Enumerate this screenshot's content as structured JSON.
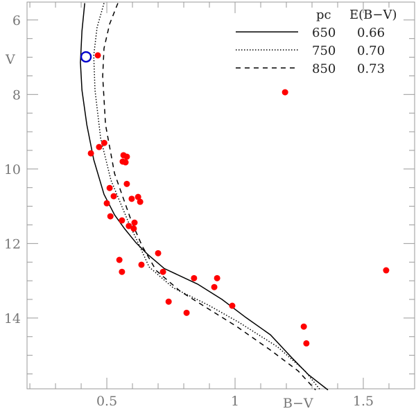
{
  "chart_data": {
    "type": "scatter",
    "title": "",
    "xlabel": "B−V",
    "ylabel": "V",
    "xlim": [
      0.189,
      1.7
    ],
    "ylim": [
      15.9,
      5.52
    ],
    "y_inverted": true,
    "x_ticks": [
      {
        "value": 0.5,
        "label": "0.5"
      },
      {
        "value": 1,
        "label": "1"
      },
      {
        "value": 1.5,
        "label": "1.5"
      }
    ],
    "y_ticks": [
      {
        "value": 6,
        "label": "6"
      },
      {
        "value": 8,
        "label": "8"
      },
      {
        "value": 10,
        "label": "10"
      },
      {
        "value": 12,
        "label": "12"
      },
      {
        "value": 14,
        "label": "14"
      }
    ],
    "x_minor_step": 0.1,
    "y_minor_step": 0.5,
    "grid": false,
    "legend": {
      "placement": "top-right",
      "headers": [
        "pc",
        "E(B−V)"
      ],
      "entries": [
        {
          "style": "solid",
          "pc": "650",
          "ebv": "0.66"
        },
        {
          "style": "dotted",
          "pc": "750",
          "ebv": "0.70"
        },
        {
          "style": "dashed",
          "pc": "850",
          "ebv": "0.73"
        }
      ]
    },
    "series": [
      {
        "name": "isochrone 650 pc",
        "style": "solid",
        "color": "#000000",
        "points": [
          [
            0.414,
            5.55
          ],
          [
            0.403,
            6.3
          ],
          [
            0.397,
            7.14
          ],
          [
            0.403,
            7.88
          ],
          [
            0.422,
            8.81
          ],
          [
            0.449,
            9.75
          ],
          [
            0.489,
            10.68
          ],
          [
            0.53,
            11.23
          ],
          [
            0.57,
            11.61
          ],
          [
            0.614,
            11.98
          ],
          [
            0.659,
            12.29
          ],
          [
            0.724,
            12.67
          ],
          [
            0.854,
            13.09
          ],
          [
            0.949,
            13.5
          ],
          [
            1.043,
            13.99
          ],
          [
            1.138,
            14.45
          ],
          [
            1.219,
            15.05
          ],
          [
            1.286,
            15.52
          ],
          [
            1.362,
            15.93
          ]
        ]
      },
      {
        "name": "isochrone 750 pc",
        "style": "dotted",
        "color": "#000000",
        "points": [
          [
            0.489,
            5.55
          ],
          [
            0.462,
            6.2
          ],
          [
            0.449,
            6.95
          ],
          [
            0.454,
            7.88
          ],
          [
            0.476,
            9.18
          ],
          [
            0.516,
            10.3
          ],
          [
            0.584,
            11.42
          ],
          [
            0.624,
            12.01
          ],
          [
            0.665,
            12.63
          ],
          [
            0.759,
            13.19
          ],
          [
            0.895,
            13.65
          ],
          [
            1.016,
            14.12
          ],
          [
            1.165,
            14.77
          ],
          [
            1.273,
            15.42
          ],
          [
            1.332,
            15.93
          ]
        ]
      },
      {
        "name": "isochrone 850 pc",
        "style": "dashed",
        "color": "#000000",
        "points": [
          [
            0.543,
            5.55
          ],
          [
            0.511,
            6.11
          ],
          [
            0.489,
            6.76
          ],
          [
            0.484,
            7.51
          ],
          [
            0.495,
            8.81
          ],
          [
            0.53,
            10.12
          ],
          [
            0.597,
            11.42
          ],
          [
            0.638,
            12.07
          ],
          [
            0.692,
            12.72
          ],
          [
            0.786,
            13.28
          ],
          [
            0.895,
            13.75
          ],
          [
            1.003,
            14.21
          ],
          [
            1.138,
            14.86
          ],
          [
            1.246,
            15.42
          ],
          [
            1.314,
            15.93
          ]
        ]
      },
      {
        "name": "stars",
        "style": "markers",
        "color": "#ff0000",
        "points": [
          [
            0.465,
            6.95
          ],
          [
            1.195,
            7.94
          ],
          [
            0.438,
            9.58
          ],
          [
            0.47,
            9.41
          ],
          [
            0.49,
            9.3
          ],
          [
            0.565,
            9.63
          ],
          [
            0.578,
            9.67
          ],
          [
            0.562,
            9.8
          ],
          [
            0.573,
            9.82
          ],
          [
            0.578,
            10.4
          ],
          [
            0.511,
            10.51
          ],
          [
            0.527,
            10.73
          ],
          [
            0.597,
            10.8
          ],
          [
            0.622,
            10.75
          ],
          [
            0.63,
            10.88
          ],
          [
            0.5,
            10.92
          ],
          [
            0.514,
            11.27
          ],
          [
            0.559,
            11.38
          ],
          [
            0.608,
            11.44
          ],
          [
            0.586,
            11.53
          ],
          [
            0.605,
            11.6
          ],
          [
            0.549,
            12.44
          ],
          [
            0.559,
            12.76
          ],
          [
            0.635,
            12.57
          ],
          [
            0.7,
            12.26
          ],
          [
            0.719,
            12.76
          ],
          [
            0.84,
            12.93
          ],
          [
            0.93,
            12.93
          ],
          [
            0.919,
            13.17
          ],
          [
            0.741,
            13.56
          ],
          [
            0.811,
            13.86
          ],
          [
            0.989,
            13.67
          ],
          [
            1.589,
            12.72
          ],
          [
            1.268,
            14.23
          ],
          [
            1.278,
            14.68
          ]
        ]
      },
      {
        "name": "highlighted star",
        "style": "open-circle",
        "color": "#0000cc",
        "points": [
          [
            0.419,
            6.99
          ]
        ]
      }
    ]
  }
}
